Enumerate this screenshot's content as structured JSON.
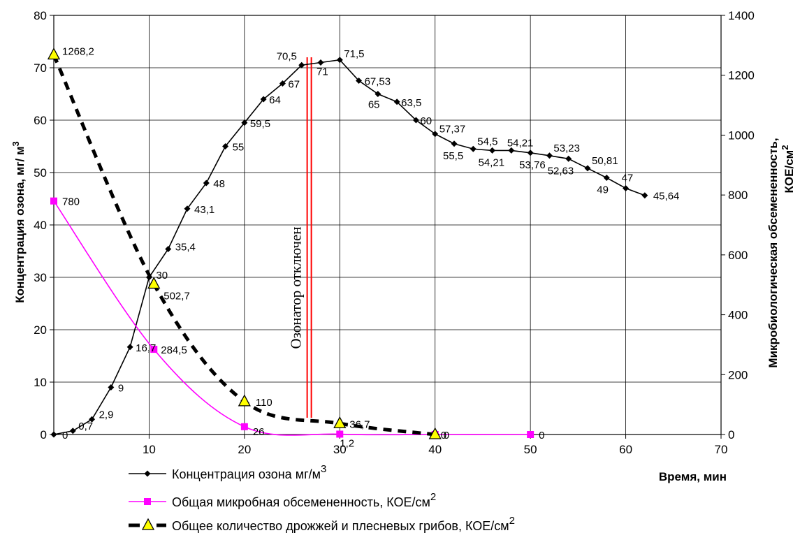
{
  "chart_data": {
    "type": "line",
    "xlabel": "Время, мин",
    "ylabel_left": "Концентрация озона, мг/ м",
    "ylabel_left_sup": "3",
    "ylabel_right_line1": "Микробиологическая обсемененность,",
    "ylabel_right_line2": "КОЕ/см",
    "ylabel_right_sup": "2",
    "xlim": [
      0,
      70
    ],
    "ylim_left": [
      0,
      80
    ],
    "ylim_right": [
      0,
      1400
    ],
    "x_ticks": [
      "10",
      "20",
      "30",
      "40",
      "50",
      "60",
      "70"
    ],
    "y_left_ticks": [
      "0",
      "10",
      "20",
      "30",
      "40",
      "50",
      "60",
      "70",
      "80"
    ],
    "y_right_ticks": [
      "0",
      "200",
      "400",
      "600",
      "800",
      "1000",
      "1200",
      "1400"
    ],
    "grid": true,
    "annotation": {
      "text": "Озонатор отключен",
      "x": 26.8
    },
    "series": [
      {
        "name": "Концентрация озона мг/м",
        "name_sup": "3",
        "axis": "left",
        "color": "#000000",
        "marker": "diamond",
        "line": "solid",
        "points": [
          {
            "x": 0,
            "y": 0,
            "label": "0"
          },
          {
            "x": 2,
            "y": 0.7,
            "label": "0,7"
          },
          {
            "x": 4,
            "y": 2.9,
            "label": "2,9"
          },
          {
            "x": 6,
            "y": 9,
            "label": "9"
          },
          {
            "x": 8,
            "y": 16.7,
            "label": "16,7"
          },
          {
            "x": 10,
            "y": 30,
            "label": "30"
          },
          {
            "x": 12,
            "y": 35.4,
            "label": "35,4"
          },
          {
            "x": 14,
            "y": 43.1,
            "label": "43,1"
          },
          {
            "x": 16,
            "y": 48,
            "label": "48"
          },
          {
            "x": 18,
            "y": 55,
            "label": "55"
          },
          {
            "x": 20,
            "y": 59.5,
            "label": "59,5"
          },
          {
            "x": 22,
            "y": 64,
            "label": "64"
          },
          {
            "x": 24,
            "y": 67,
            "label": "67"
          },
          {
            "x": 26,
            "y": 70.5,
            "label": "70,5"
          },
          {
            "x": 28,
            "y": 71,
            "label": "71"
          },
          {
            "x": 30,
            "y": 71.5,
            "label": "71,5"
          },
          {
            "x": 32,
            "y": 67.53,
            "label": "67,53"
          },
          {
            "x": 34,
            "y": 65,
            "label": "65"
          },
          {
            "x": 36,
            "y": 63.5,
            "label": "63,5"
          },
          {
            "x": 38,
            "y": 60,
            "label": "60"
          },
          {
            "x": 40,
            "y": 57.37,
            "label": "57,37"
          },
          {
            "x": 42,
            "y": 55.5,
            "label": "55,5"
          },
          {
            "x": 44,
            "y": 54.5,
            "label": "54,5"
          },
          {
            "x": 46,
            "y": 54.21,
            "label": "54,21"
          },
          {
            "x": 48,
            "y": 54.21,
            "label": "54,21"
          },
          {
            "x": 50,
            "y": 53.76,
            "label": "53,76"
          },
          {
            "x": 52,
            "y": 53.23,
            "label": "53,23"
          },
          {
            "x": 54,
            "y": 52.63,
            "label": "52,63"
          },
          {
            "x": 56,
            "y": 50.81,
            "label": "50,81"
          },
          {
            "x": 58,
            "y": 49,
            "label": "49"
          },
          {
            "x": 60,
            "y": 47,
            "label": "47"
          },
          {
            "x": 62,
            "y": 45.64,
            "label": "45,64"
          }
        ]
      },
      {
        "name": "Общая микробная обсемененность, КОЕ/см",
        "name_sup": "2",
        "axis": "right",
        "color": "#ff00ff",
        "marker": "square",
        "line": "smooth",
        "points": [
          {
            "x": 0,
            "y": 780,
            "label": "780"
          },
          {
            "x": 10.5,
            "y": 284.5,
            "label": "284,5"
          },
          {
            "x": 20,
            "y": 26,
            "label": "26"
          },
          {
            "x": 30,
            "y": 1.2,
            "label": "1,2"
          },
          {
            "x": 40,
            "y": 0,
            "label": "0"
          },
          {
            "x": 50,
            "y": 0,
            "label": "0"
          }
        ]
      },
      {
        "name": "Общее количество дрожжей и плесневых грибов, КОЕ/см",
        "name_sup": "2",
        "axis": "right",
        "color": "#000000",
        "marker": "triangle",
        "marker_fill": "#ffff00",
        "line": "dashed",
        "points": [
          {
            "x": 0,
            "y": 1268.2,
            "label": "1268,2"
          },
          {
            "x": 10.5,
            "y": 502.7,
            "label": "502,7"
          },
          {
            "x": 20,
            "y": 110,
            "label": "110"
          },
          {
            "x": 30,
            "y": 36.7,
            "label": "36,7"
          },
          {
            "x": 40,
            "y": 0,
            "label": "0"
          }
        ]
      }
    ]
  }
}
